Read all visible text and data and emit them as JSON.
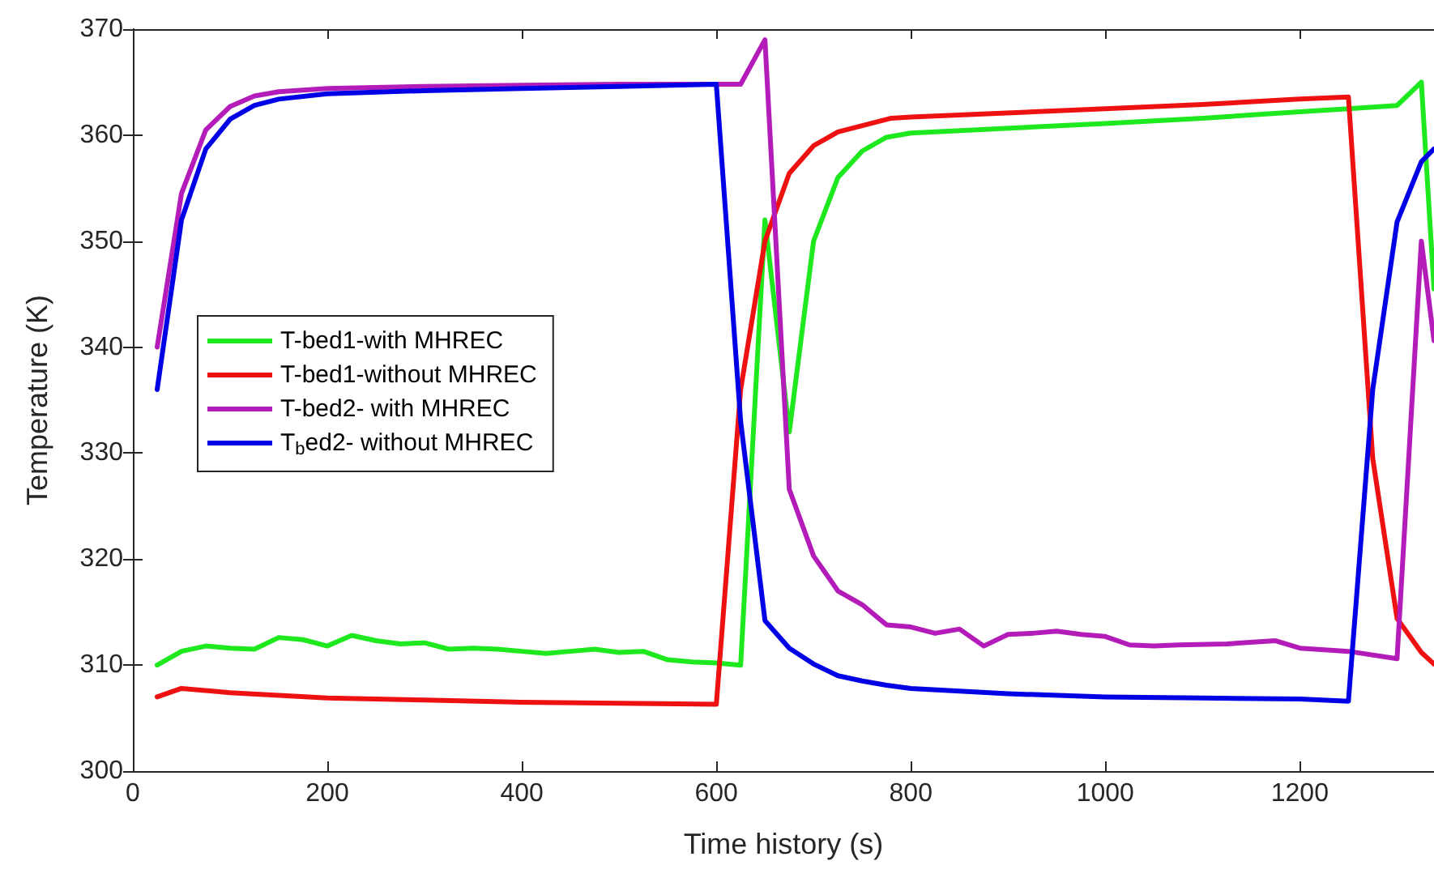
{
  "chart_data": {
    "type": "line",
    "xlabel": "Time history (s)",
    "ylabel": "Temperature (K)",
    "xlim": [
      0,
      1338
    ],
    "xticks": [
      0,
      200,
      400,
      600,
      800,
      1000,
      1200
    ],
    "ylim": [
      300,
      370
    ],
    "yticks": [
      300,
      310,
      320,
      330,
      340,
      350,
      360,
      370
    ],
    "grid": false,
    "legend": "left",
    "marker": "none",
    "line_style": "solid",
    "series": [
      {
        "name": "T-bed1-with MHREC",
        "color": "#1ee81e",
        "x": [
          25,
          50,
          75,
          100,
          125,
          150,
          175,
          200,
          225,
          250,
          275,
          300,
          325,
          350,
          375,
          400,
          425,
          450,
          475,
          500,
          525,
          550,
          575,
          600,
          625,
          650,
          675,
          700,
          725,
          750,
          775,
          800,
          1000,
          1100,
          1200,
          1250,
          1300,
          1325,
          1338
        ],
        "values": [
          310,
          311.3,
          311.8,
          311.6,
          311.5,
          312.6,
          312.4,
          311.8,
          312.8,
          312.3,
          312.0,
          312.1,
          311.5,
          311.6,
          311.5,
          311.3,
          311.1,
          311.3,
          311.5,
          311.2,
          311.3,
          310.5,
          310.3,
          310.2,
          310.0,
          352,
          332,
          350,
          356,
          358.5,
          359.8,
          360.2,
          361.1,
          361.6,
          362.2,
          362.5,
          362.8,
          365,
          345.5
        ]
      },
      {
        "name": "T-bed1-without MHREC",
        "color": "#ee1111",
        "x": [
          25,
          50,
          100,
          200,
          300,
          400,
          500,
          600,
          625,
          650,
          675,
          700,
          725,
          780,
          800,
          1000,
          1100,
          1200,
          1250,
          1275,
          1300,
          1325,
          1338
        ],
        "values": [
          307,
          307.8,
          307.4,
          306.9,
          306.7,
          306.5,
          306.4,
          306.3,
          336,
          350,
          356.4,
          359,
          360.3,
          361.6,
          361.7,
          362.5,
          362.9,
          363.4,
          363.6,
          329.5,
          314.4,
          311.2,
          310.1
        ]
      },
      {
        "name": "T-bed2- with MHREC",
        "color": "#b31cb8",
        "x": [
          25,
          50,
          75,
          100,
          125,
          150,
          200,
          300,
          400,
          500,
          600,
          625,
          650,
          675,
          700,
          725,
          750,
          775,
          800,
          825,
          850,
          875,
          900,
          925,
          950,
          975,
          1000,
          1025,
          1050,
          1075,
          1125,
          1175,
          1200,
          1250,
          1300,
          1325,
          1338
        ],
        "values": [
          340,
          354.5,
          360.5,
          362.7,
          363.7,
          364.1,
          364.4,
          364.6,
          364.7,
          364.8,
          364.8,
          364.8,
          369,
          326.6,
          320.3,
          317,
          315.7,
          313.8,
          313.6,
          313,
          313.4,
          311.8,
          312.9,
          313,
          313.2,
          312.9,
          312.7,
          311.9,
          311.8,
          311.9,
          312,
          312.3,
          311.6,
          311.3,
          310.6,
          350,
          340.6
        ]
      },
      {
        "name": "T$_{b}$ed2- without MHREC",
        "color": "#0000e6",
        "x": [
          25,
          50,
          75,
          100,
          125,
          150,
          200,
          300,
          400,
          500,
          600,
          625,
          650,
          675,
          700,
          725,
          750,
          775,
          800,
          900,
          1000,
          1100,
          1200,
          1250,
          1275,
          1300,
          1325,
          1338
        ],
        "values": [
          336,
          352,
          358.7,
          361.5,
          362.8,
          363.4,
          363.9,
          364.2,
          364.4,
          364.6,
          364.8,
          333,
          314.2,
          311.6,
          310.1,
          309,
          308.5,
          308.1,
          307.8,
          307.3,
          307,
          306.9,
          306.8,
          306.6,
          336,
          351.8,
          357.5,
          358.7
        ]
      }
    ]
  }
}
